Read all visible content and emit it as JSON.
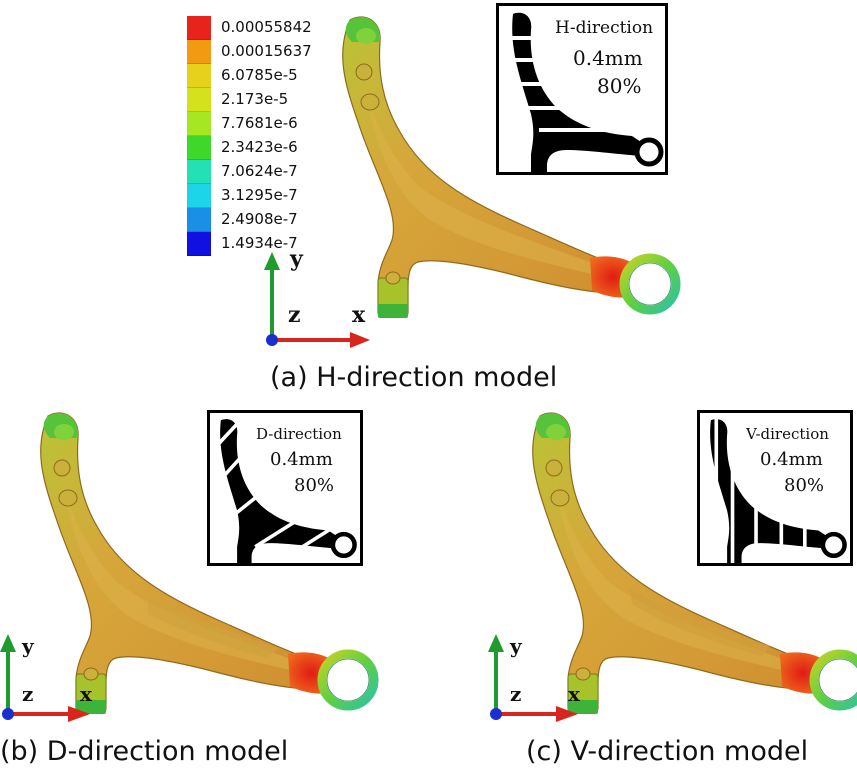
{
  "legend": {
    "entries": [
      {
        "label": "0.00055842",
        "color": "#e8231c"
      },
      {
        "label": "0.00015637",
        "color": "#f29a12"
      },
      {
        "label": "6.0785e-5",
        "color": "#e6d21c"
      },
      {
        "label": "2.173e-5",
        "color": "#d4e21e"
      },
      {
        "label": "7.7681e-6",
        "color": "#a6e622"
      },
      {
        "label": "2.3423e-6",
        "color": "#3fd82a"
      },
      {
        "label": "7.0624e-7",
        "color": "#25e0b4"
      },
      {
        "label": "3.1295e-7",
        "color": "#1ed4e8"
      },
      {
        "label": "2.4908e-7",
        "color": "#1a8fe6"
      },
      {
        "label": "1.4934e-7",
        "color": "#1010e0"
      }
    ]
  },
  "panels": {
    "a": {
      "caption": "(a) H-direction model",
      "inset": {
        "title": "H-direction",
        "thickness": "0.4mm",
        "ratio": "80%"
      },
      "axes": {
        "y": "y",
        "z": "z",
        "x": "x"
      }
    },
    "b": {
      "caption": "(b) D-direction model",
      "inset": {
        "title": "D-direction",
        "thickness": "0.4mm",
        "ratio": "80%"
      },
      "axes": {
        "y": "y",
        "z": "z",
        "x": "x"
      }
    },
    "c": {
      "caption": "(c) V-direction model",
      "inset": {
        "title": "V-direction",
        "thickness": "0.4mm",
        "ratio": "80%"
      },
      "axes": {
        "y": "y",
        "z": "z",
        "x": "x"
      }
    }
  },
  "colors": {
    "arm_base": "#d3a63a",
    "hot": "#e52a1f",
    "cool": "#3cc44a",
    "ring": "#41c79a",
    "axis_y": "#1f9a2c",
    "axis_x": "#d8261f",
    "axis_z": "#1a2fd0"
  }
}
